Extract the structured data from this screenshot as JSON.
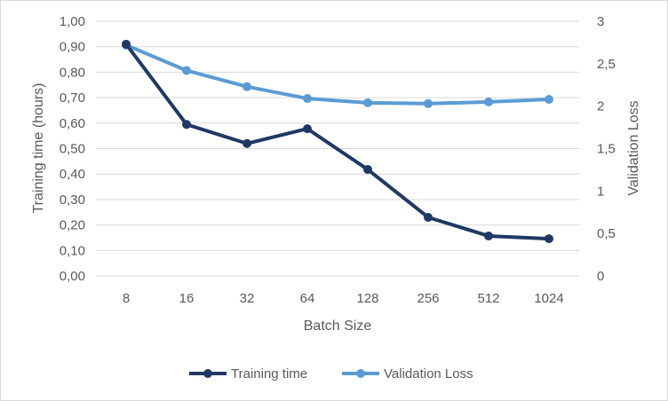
{
  "chart_data": {
    "type": "line",
    "categories": [
      "8",
      "16",
      "32",
      "64",
      "128",
      "256",
      "512",
      "1024"
    ],
    "xlabel": "Batch Size",
    "ylabel": "Training time (hours)",
    "y2label": "Validation Loss",
    "ylim": [
      0,
      1
    ],
    "yticks": [
      "0,00",
      "0,10",
      "0,20",
      "0,30",
      "0,40",
      "0,50",
      "0,60",
      "0,70",
      "0,80",
      "0,90",
      "1,00"
    ],
    "y2lim": [
      0,
      3
    ],
    "y2ticks": [
      "0",
      "0,5",
      "1",
      "1,5",
      "2",
      "2,5",
      "3"
    ],
    "grid": true,
    "legend_position": "bottom",
    "series": [
      {
        "name": "Training time",
        "axis": "left",
        "color": "#203864",
        "values": [
          0.91,
          0.595,
          0.52,
          0.578,
          0.418,
          0.23,
          0.157,
          0.146
        ]
      },
      {
        "name": "Validation Loss",
        "axis": "right",
        "color": "#5B9BD5",
        "values": [
          2.72,
          2.42,
          2.23,
          2.09,
          2.04,
          2.03,
          2.05,
          2.08
        ]
      }
    ]
  }
}
